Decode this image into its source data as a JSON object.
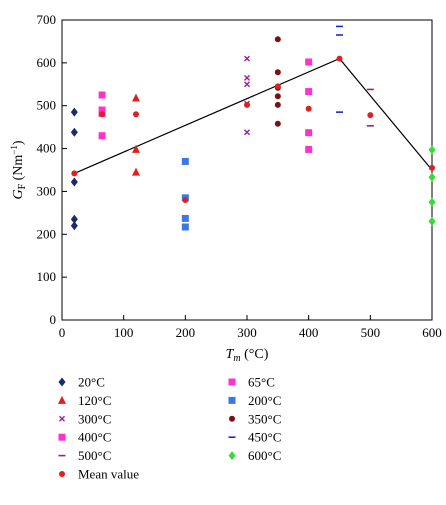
{
  "chart_data": {
    "type": "scatter",
    "xlabel": {
      "base": "T",
      "sub": "m",
      "unit": " (°C)"
    },
    "ylabel": {
      "base": "G",
      "sub": "F",
      "unit": " (Nm",
      "sup": "−1",
      "close": ")"
    },
    "xlim": [
      0,
      600
    ],
    "ylim": [
      0,
      700
    ],
    "xticks": [
      0,
      100,
      200,
      300,
      400,
      500,
      600
    ],
    "yticks": [
      0,
      100,
      200,
      300,
      400,
      500,
      600,
      700
    ],
    "grid": false,
    "legend_position": "bottom",
    "series": [
      {
        "name": "20°C",
        "marker": "diamond",
        "color": "#1a2a6c",
        "x": [
          20,
          20,
          20,
          20,
          20
        ],
        "y": [
          485,
          438,
          322,
          235,
          220
        ]
      },
      {
        "name": "65°C",
        "marker": "square",
        "color": "#ff33cc",
        "x": [
          65,
          65,
          65,
          65
        ],
        "y": [
          525,
          490,
          482,
          430
        ]
      },
      {
        "name": "120°C",
        "marker": "triangle",
        "color": "#e02020",
        "x": [
          120,
          120,
          120
        ],
        "y": [
          518,
          398,
          345
        ]
      },
      {
        "name": "200°C",
        "marker": "square",
        "color": "#3a78e6",
        "x": [
          200,
          200,
          200,
          200
        ],
        "y": [
          370,
          285,
          237,
          217
        ]
      },
      {
        "name": "300°C",
        "marker": "x",
        "color": "#a0209a",
        "x": [
          300,
          300,
          300,
          300,
          300
        ],
        "y": [
          610,
          565,
          550,
          505,
          438
        ]
      },
      {
        "name": "350°C",
        "marker": "circle",
        "color": "#7a1010",
        "x": [
          350,
          350,
          350,
          350,
          350,
          350
        ],
        "y": [
          655,
          578,
          542,
          522,
          502,
          458
        ]
      },
      {
        "name": "400°C",
        "marker": "square",
        "color": "#ff33cc",
        "x": [
          400,
          400,
          400,
          400
        ],
        "y": [
          602,
          533,
          437,
          398
        ]
      },
      {
        "name": "450°C",
        "marker": "dash",
        "color": "#1a2ad0",
        "x": [
          450,
          450,
          450
        ],
        "y": [
          685,
          665,
          485
        ]
      },
      {
        "name": "500°C",
        "marker": "dash",
        "color": "#8a2a7a",
        "x": [
          500,
          500
        ],
        "y": [
          538,
          453
        ]
      },
      {
        "name": "600°C",
        "marker": "diamond",
        "color": "#33dd33",
        "x": [
          600,
          600,
          600,
          600
        ],
        "y": [
          397,
          333,
          275,
          230
        ]
      },
      {
        "name": "Mean value",
        "marker": "circle",
        "color": "#e02020",
        "x": [
          20,
          65,
          120,
          200,
          300,
          350,
          400,
          450,
          500,
          600
        ],
        "y": [
          342,
          480,
          480,
          280,
          502,
          545,
          493,
          610,
          478,
          355
        ]
      }
    ],
    "trend_line": {
      "color": "#000000",
      "x": [
        20,
        450,
        600
      ],
      "y": [
        342,
        610,
        350
      ]
    },
    "legend_columns": [
      [
        "20°C",
        "120°C",
        "300°C",
        "400°C",
        "500°C",
        "Mean value"
      ],
      [
        "65°C",
        "200°C",
        "350°C",
        "450°C",
        "600°C"
      ]
    ]
  }
}
